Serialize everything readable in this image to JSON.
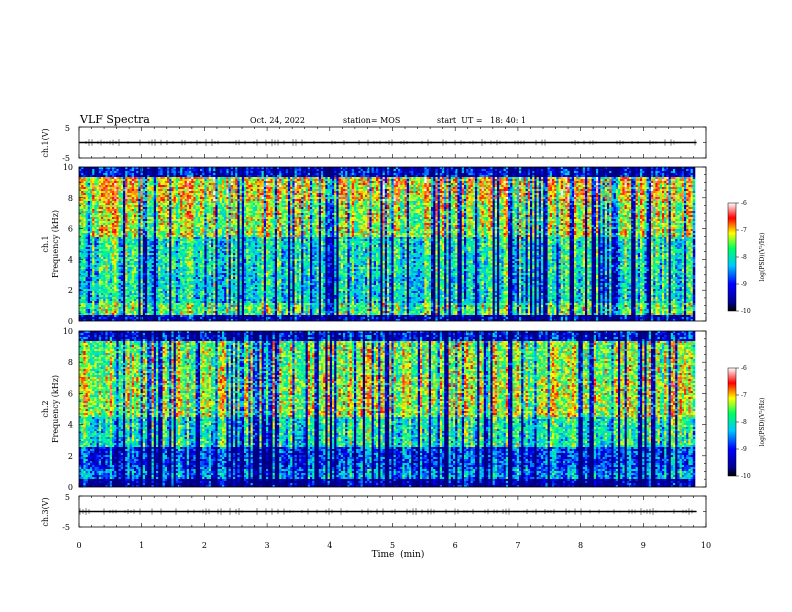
{
  "header": {
    "title": "VLF Spectra",
    "date": "Oct. 24, 2022",
    "station": "station= MOS",
    "start": "start  UT =   18: 40: 1"
  },
  "chart_data": [
    {
      "type": "line",
      "panel": "ch.1 waveform",
      "ylabel": "ch.1(V)",
      "ylim": [
        -5,
        5
      ],
      "yticks": [
        "5",
        "-5"
      ],
      "x": [
        0,
        9.85
      ],
      "values": [
        0,
        0
      ]
    },
    {
      "type": "heatmap",
      "panel": "ch.1 spectrogram",
      "ylabel": "ch.1\nFrequency (kHz)",
      "ylabel_lines": [
        "ch.1",
        "Frequency (kHz)"
      ],
      "ylim": [
        0,
        10
      ],
      "yticks": [
        "0",
        "2",
        "4",
        "6",
        "8",
        "10"
      ],
      "xlim": [
        0,
        10
      ],
      "data_extent_min": 9.85,
      "colorbar": {
        "label": "log(PSD)(V²/Hz)",
        "range": [
          -10,
          -6
        ],
        "ticks": [
          "-6",
          "-7",
          "-8",
          "-9",
          "-10"
        ]
      }
    },
    {
      "type": "heatmap",
      "panel": "ch.2 spectrogram",
      "ylabel": "ch.2\nFrequency (kHz)",
      "ylabel_lines": [
        "ch.2",
        "Frequency (kHz)"
      ],
      "ylim": [
        0,
        10
      ],
      "yticks": [
        "0",
        "2",
        "4",
        "6",
        "8",
        "10"
      ],
      "xlim": [
        0,
        10
      ],
      "data_extent_min": 9.85,
      "colorbar": {
        "label": "log(PSD)(V²/Hz)",
        "range": [
          -10,
          -6
        ],
        "ticks": [
          "-6",
          "-7",
          "-8",
          "-9",
          "-10"
        ]
      }
    },
    {
      "type": "line",
      "panel": "ch.3 waveform",
      "ylabel": "ch.3(V)",
      "ylim": [
        -5,
        5
      ],
      "yticks": [
        "5",
        "-5"
      ],
      "x": [
        0,
        9.85
      ],
      "values": [
        0,
        0
      ]
    }
  ],
  "xaxis": {
    "label": "Time  (min)",
    "xlim": [
      0,
      10
    ],
    "ticks": [
      "0",
      "1",
      "2",
      "3",
      "4",
      "5",
      "6",
      "7",
      "8",
      "9",
      "10"
    ]
  },
  "colors": {
    "ramp": [
      "#000080",
      "#0000ff",
      "#00c0ff",
      "#00ff80",
      "#ffff00",
      "#ff0000",
      "#ffffff"
    ]
  }
}
